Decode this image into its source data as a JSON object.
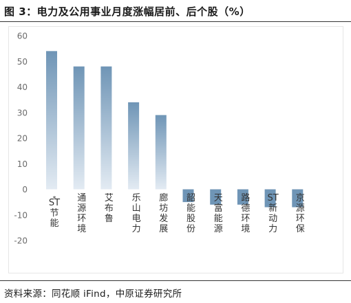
{
  "header": {
    "title": "图 3：电力及公用事业月度涨幅居前、后个股（%）"
  },
  "footer": {
    "source": "资料来源：同花顺 iFind，中原证券研究所"
  },
  "colors": {
    "bar_top": "#6f95b6",
    "bar_bottom": "#e3ebf3",
    "axis_text": "#6b6b6b"
  },
  "chart_data": {
    "type": "bar",
    "categories": [
      "*ST节能",
      "通源环境",
      "艾布鲁",
      "乐山电力",
      "廊坊发展",
      "韶能股份",
      "天富能源",
      "路德环境",
      "ST新动力",
      "京源环保"
    ],
    "values": [
      54,
      48,
      48,
      34,
      29,
      -5,
      -6,
      -6,
      -7,
      -7
    ],
    "title": "",
    "xlabel": "",
    "ylabel": "",
    "ylim": [
      -20,
      60
    ],
    "yticks": [
      60,
      50,
      40,
      30,
      20,
      10,
      0,
      -10,
      -20
    ],
    "grid": false
  }
}
